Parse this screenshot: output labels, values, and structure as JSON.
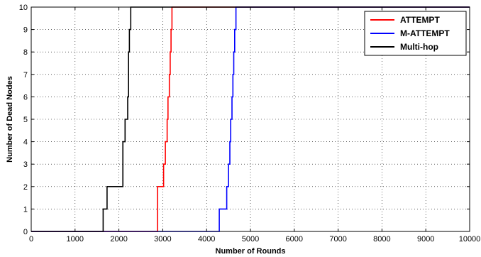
{
  "chart_data": {
    "type": "line",
    "title": "",
    "xlabel": "Number of Rounds",
    "ylabel": "Number of Dead Nodes",
    "xlim": [
      0,
      10000
    ],
    "ylim": [
      0,
      10
    ],
    "x_ticks": [
      0,
      1000,
      2000,
      3000,
      4000,
      5000,
      6000,
      7000,
      8000,
      9000,
      10000
    ],
    "y_ticks": [
      0,
      1,
      2,
      3,
      4,
      5,
      6,
      7,
      8,
      9,
      10
    ],
    "grid": true,
    "legend_position": "top-right",
    "step": true,
    "series": [
      {
        "name": "ATTEMPT",
        "color": "#ff0000",
        "points": [
          [
            0,
            0
          ],
          [
            2880,
            0
          ],
          [
            2880,
            2
          ],
          [
            3020,
            2
          ],
          [
            3020,
            3
          ],
          [
            3060,
            3
          ],
          [
            3060,
            4
          ],
          [
            3100,
            4
          ],
          [
            3100,
            5
          ],
          [
            3120,
            5
          ],
          [
            3120,
            6
          ],
          [
            3150,
            6
          ],
          [
            3150,
            7
          ],
          [
            3170,
            7
          ],
          [
            3170,
            8
          ],
          [
            3190,
            8
          ],
          [
            3190,
            9
          ],
          [
            3210,
            9
          ],
          [
            3210,
            10
          ],
          [
            10000,
            10
          ]
        ]
      },
      {
        "name": "M-ATTEMPT",
        "color": "#0000ff",
        "points": [
          [
            0,
            0
          ],
          [
            4290,
            0
          ],
          [
            4290,
            1
          ],
          [
            4460,
            1
          ],
          [
            4460,
            2
          ],
          [
            4500,
            2
          ],
          [
            4500,
            3
          ],
          [
            4530,
            3
          ],
          [
            4530,
            4
          ],
          [
            4550,
            4
          ],
          [
            4550,
            5
          ],
          [
            4580,
            5
          ],
          [
            4580,
            6
          ],
          [
            4600,
            6
          ],
          [
            4600,
            7
          ],
          [
            4620,
            7
          ],
          [
            4620,
            8
          ],
          [
            4640,
            8
          ],
          [
            4640,
            9
          ],
          [
            4670,
            9
          ],
          [
            4670,
            10
          ],
          [
            10000,
            10
          ]
        ]
      },
      {
        "name": "Multi-hop",
        "color": "#000000",
        "points": [
          [
            0,
            0
          ],
          [
            1640,
            0
          ],
          [
            1640,
            1
          ],
          [
            1730,
            1
          ],
          [
            1730,
            2
          ],
          [
            2090,
            2
          ],
          [
            2090,
            4
          ],
          [
            2140,
            4
          ],
          [
            2140,
            5
          ],
          [
            2200,
            5
          ],
          [
            2200,
            6
          ],
          [
            2220,
            6
          ],
          [
            2220,
            8
          ],
          [
            2240,
            8
          ],
          [
            2240,
            9
          ],
          [
            2270,
            9
          ],
          [
            2270,
            10
          ],
          [
            10000,
            10
          ]
        ]
      }
    ]
  }
}
